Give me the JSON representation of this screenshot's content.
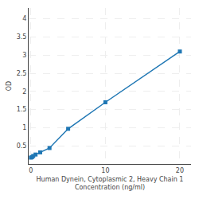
{
  "chart_data": {
    "type": "line",
    "xlabel": "Human Dynein, Cytoplasmic 2, Heavy Chain 1\nConcentration (ng/ml)",
    "ylabel": "OD",
    "x": [
      0,
      0.156,
      0.313,
      0.625,
      1.25,
      2.5,
      5,
      10,
      20
    ],
    "values": [
      0.175,
      0.19,
      0.22,
      0.26,
      0.32,
      0.44,
      0.97,
      1.7,
      3.1
    ],
    "marker": "square",
    "xlim": [
      -0.3,
      21.5
    ],
    "ylim": [
      0,
      4.3
    ],
    "xticks": [
      0,
      10,
      20
    ],
    "yticks": [
      0.5,
      1,
      1.5,
      2,
      2.5,
      3,
      3.5,
      4
    ],
    "grid": true
  }
}
